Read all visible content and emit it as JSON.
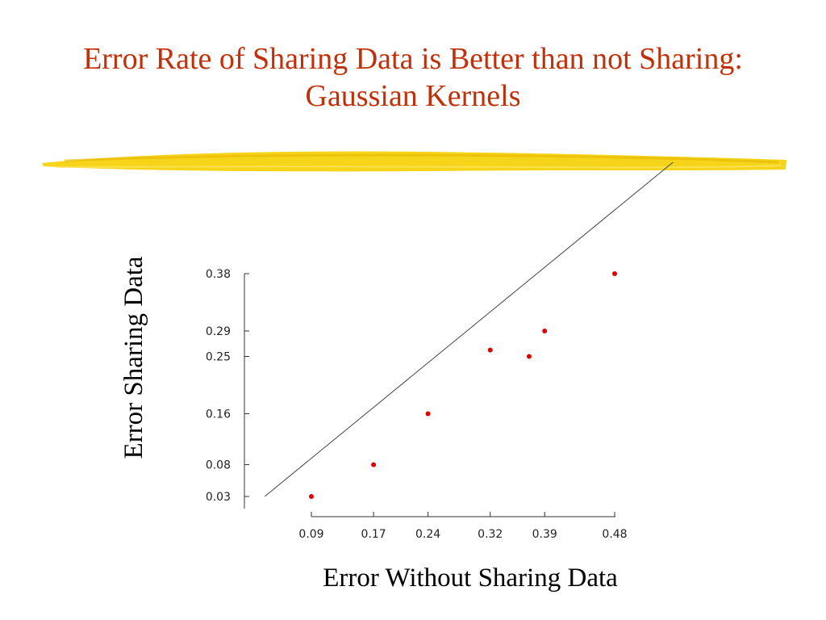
{
  "slide": {
    "title_line1": "Error Rate of Sharing Data is Better than not Sharing:",
    "title_line2": "Gaussian Kernels"
  },
  "chart_data": {
    "type": "scatter",
    "title": "",
    "xlabel": "Error Without Sharing Data",
    "ylabel": "Error Sharing Data",
    "x_ticks": [
      0.09,
      0.17,
      0.24,
      0.32,
      0.39,
      0.48
    ],
    "y_ticks": [
      0.03,
      0.08,
      0.16,
      0.25,
      0.29,
      0.38
    ],
    "xlim": [
      0.09,
      0.48
    ],
    "ylim": [
      0.03,
      0.38
    ],
    "grid": false,
    "reference_line": "y = x",
    "point_color": "#dd0000",
    "line_color": "#444444",
    "points": [
      {
        "x": 0.09,
        "y": 0.03
      },
      {
        "x": 0.17,
        "y": 0.08
      },
      {
        "x": 0.24,
        "y": 0.16
      },
      {
        "x": 0.32,
        "y": 0.26
      },
      {
        "x": 0.37,
        "y": 0.25
      },
      {
        "x": 0.39,
        "y": 0.29
      },
      {
        "x": 0.48,
        "y": 0.38
      }
    ]
  }
}
